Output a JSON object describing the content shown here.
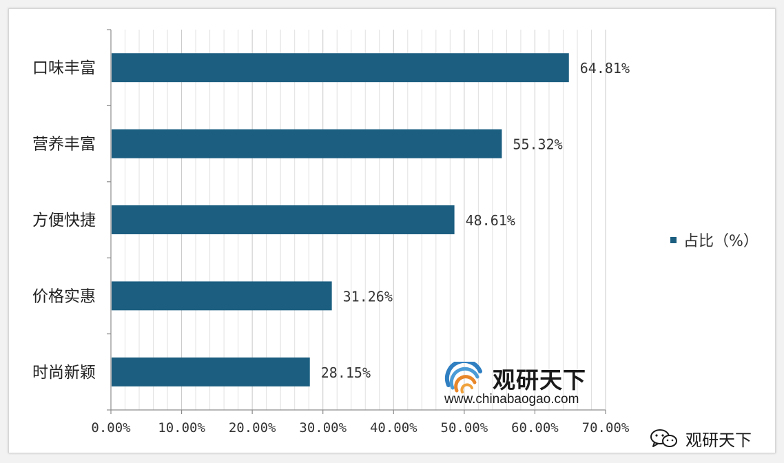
{
  "chart_data": {
    "type": "bar",
    "orientation": "horizontal",
    "categories": [
      "口味丰富",
      "营养丰富",
      "方便快捷",
      "价格实惠",
      "时尚新颖"
    ],
    "series": [
      {
        "name": "占比（%）",
        "values": [
          64.81,
          55.32,
          48.61,
          31.26,
          28.15
        ],
        "data_labels": [
          "64.81%",
          "55.32%",
          "48.61%",
          "31.26%",
          "28.15%"
        ],
        "color": "#1b5e80"
      }
    ],
    "x_ticks": [
      "0.00%",
      "10.00%",
      "20.00%",
      "30.00%",
      "40.00%",
      "50.00%",
      "60.00%",
      "70.00%"
    ],
    "xlim": [
      0,
      70
    ],
    "grid": true,
    "legend_position": "right"
  },
  "legend": {
    "label": "占比（%）",
    "color": "#1b5e80"
  },
  "watermark": {
    "name": "观研天下",
    "url": "www.chinabaogao.com"
  },
  "credit": {
    "label": "观研天下",
    "icon": "wechat-icon"
  }
}
